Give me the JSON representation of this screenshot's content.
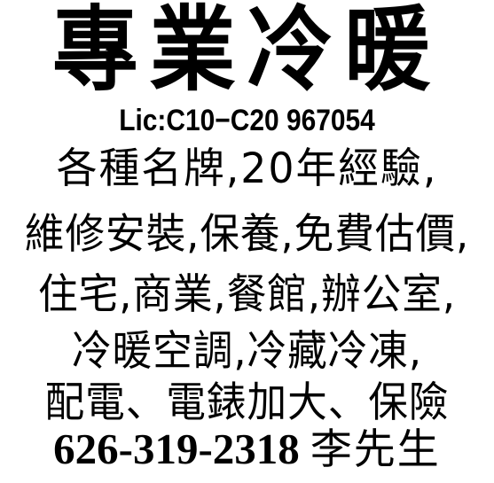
{
  "ad": {
    "title": "專業冷暖",
    "license": "Lic:C10−C20 967054",
    "lines": [
      "各種名牌,20年經驗,",
      "維修安裝,保養,免費估價,",
      "住宅,商業,餐館,辦公室,",
      "冷暖空調,冷藏冷凍,",
      "配電、電錶加大、保險"
    ],
    "contact": {
      "phone": "626-319-2318",
      "name": "李先生"
    }
  }
}
